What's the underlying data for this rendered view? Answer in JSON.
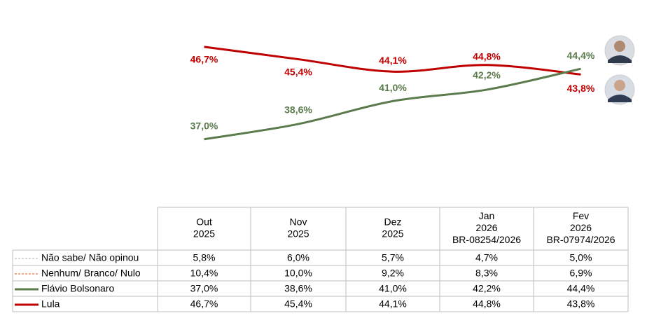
{
  "chart_data": {
    "type": "line",
    "ylim": [
      32.5,
      50
    ],
    "series": [
      {
        "name": "Lula",
        "color": "#c00000",
        "values": [
          46.7,
          45.4,
          44.1,
          44.8,
          43.8
        ],
        "value_labels": [
          "46,7%",
          "45,4%",
          "44,1%",
          "44,8%",
          "43,8%"
        ]
      },
      {
        "name": "Flávio Bolsonaro",
        "color": "#5b7b4c",
        "values": [
          37.0,
          38.6,
          41.0,
          42.2,
          44.4
        ],
        "value_labels": [
          "37,0%",
          "38,6%",
          "41,0%",
          "42,2%",
          "44,4%"
        ]
      }
    ]
  },
  "table": {
    "columns": [
      [
        "Out",
        "2025"
      ],
      [
        "Nov",
        "2025"
      ],
      [
        "Dez",
        "2025"
      ],
      [
        "Jan",
        "2026",
        "BR-08254/2026"
      ],
      [
        "Fev",
        "2026",
        "BR-07974/2026"
      ]
    ],
    "rows": [
      {
        "label": "Não sabe/ Não opinou",
        "color": "#bfbfbf",
        "dash": true,
        "cells": [
          "5,8%",
          "6,0%",
          "5,7%",
          "4,7%",
          "5,0%"
        ]
      },
      {
        "label": "Nenhum/ Branco/ Nulo",
        "color": "#e07040",
        "dash": true,
        "cells": [
          "10,4%",
          "10,0%",
          "9,2%",
          "8,3%",
          "6,9%"
        ]
      },
      {
        "label": "Flávio Bolsonaro",
        "color": "#5b7b4c",
        "dash": false,
        "cells": [
          "37,0%",
          "38,6%",
          "41,0%",
          "42,2%",
          "44,4%"
        ]
      },
      {
        "label": "Lula",
        "color": "#c00000",
        "dash": false,
        "cells": [
          "46,7%",
          "45,4%",
          "44,1%",
          "44,8%",
          "43,8%"
        ]
      }
    ]
  }
}
